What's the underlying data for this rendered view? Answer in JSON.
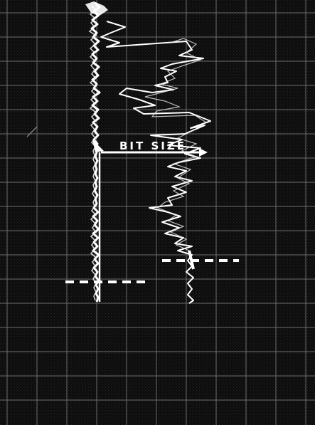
{
  "figure": {
    "annotation": "BIT SIZE",
    "colors": {
      "screen_background": "#0b0b0b",
      "grid_line": "#b8b8b8",
      "trace": "#ffffff"
    }
  }
}
